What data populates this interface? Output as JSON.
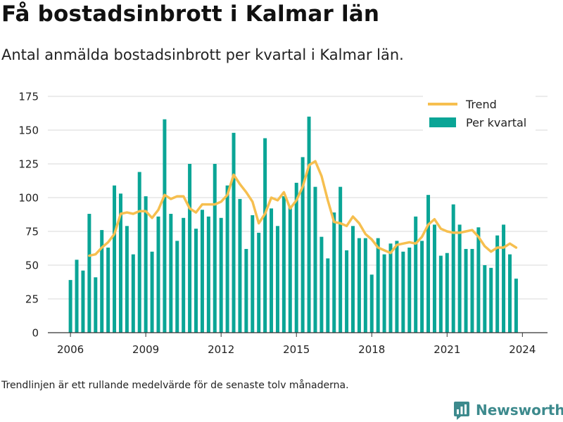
{
  "title": "Få bostadsinbrott i Kalmar län",
  "subtitle": "Antal anmälda bostadsinbrott per kvartal i Kalmar län.",
  "footnote": "Trendlinjen är ett rullande medelvärde för de senaste tolv månaderna.",
  "brand": {
    "name": "Newsworthy",
    "color": "#3d8a8d"
  },
  "colors": {
    "bars": "#0aa596",
    "trend": "#f6bf4f",
    "grid": "#d9d9d9"
  },
  "chart_data": {
    "type": "bar",
    "title": "Få bostadsinbrott i Kalmar län",
    "subtitle": "Antal anmälda bostadsinbrott per kvartal i Kalmar län.",
    "xlabel": "",
    "ylabel": "",
    "ylim": [
      0,
      175
    ],
    "yticks": [
      0,
      25,
      50,
      75,
      100,
      125,
      150,
      175
    ],
    "xticks": [
      2006,
      2009,
      2012,
      2015,
      2018,
      2021,
      2024
    ],
    "xlim": [
      2005.1,
      2025.0
    ],
    "grid": true,
    "legend_position": "top-right",
    "start": "2006-Q1",
    "series": [
      {
        "name": "Per kvartal",
        "type": "bar",
        "values": [
          39,
          54,
          46,
          88,
          41,
          76,
          63,
          109,
          103,
          79,
          58,
          119,
          101,
          60,
          86,
          158,
          88,
          68,
          85,
          125,
          77,
          91,
          86,
          125,
          85,
          109,
          148,
          99,
          62,
          87,
          74,
          144,
          92,
          79,
          101,
          93,
          111,
          130,
          160,
          108,
          71,
          55,
          89,
          108,
          61,
          79,
          70,
          70,
          43,
          70,
          58,
          66,
          68,
          60,
          63,
          86,
          68,
          102,
          80,
          57,
          59,
          95,
          80,
          62,
          62,
          78,
          50,
          48,
          72,
          80,
          58,
          40
        ]
      },
      {
        "name": "Trend",
        "type": "line",
        "values": [
          null,
          null,
          null,
          57,
          58,
          63,
          67,
          73,
          88,
          89,
          88,
          90,
          90,
          85,
          91,
          102,
          99,
          101,
          101,
          92,
          89,
          95,
          95,
          95,
          97,
          102,
          117,
          110,
          104,
          97,
          81,
          88,
          100,
          98,
          104,
          92,
          98,
          108,
          124,
          127,
          116,
          98,
          82,
          81,
          79,
          86,
          81,
          73,
          69,
          63,
          61,
          59,
          65,
          66,
          67,
          66,
          71,
          80,
          84,
          77,
          75,
          74,
          74,
          75,
          76,
          71,
          64,
          60,
          63,
          63,
          66,
          63
        ]
      }
    ]
  }
}
